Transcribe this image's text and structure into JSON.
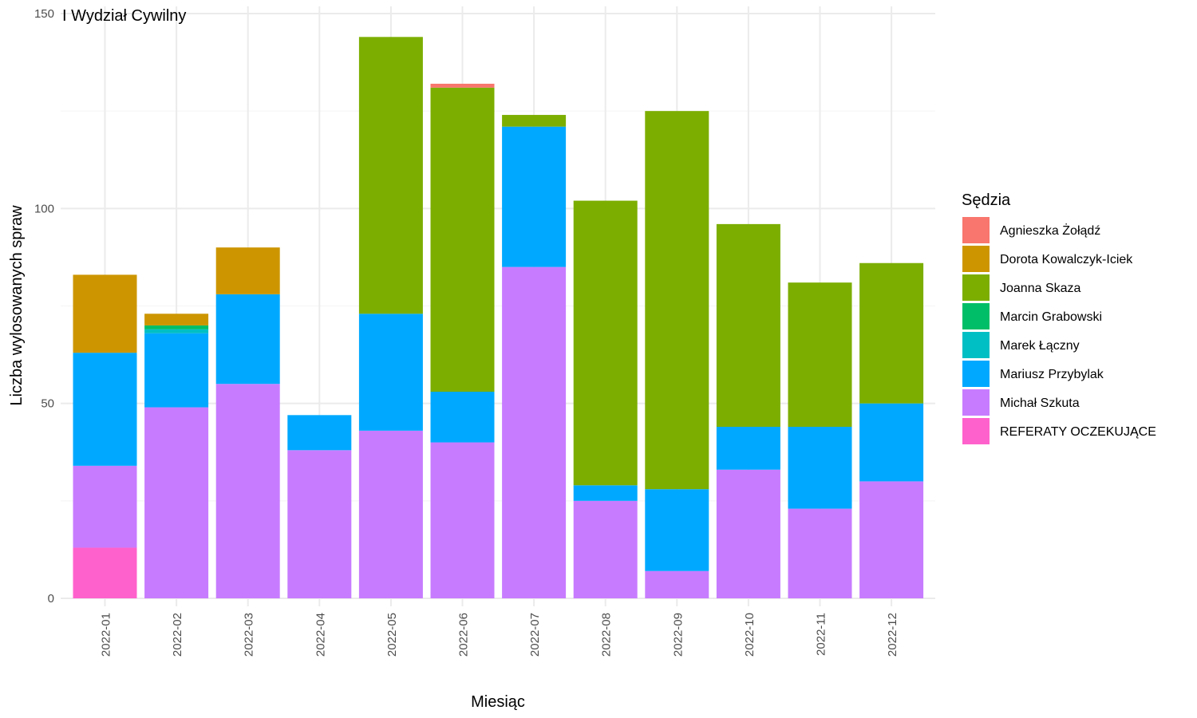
{
  "chart_data": {
    "type": "bar",
    "stacked": true,
    "title": "I Wydział Cywilny",
    "xlabel": "Miesiąc",
    "ylabel": "Liczba wylosowanych spraw",
    "ylim": [
      0,
      150
    ],
    "yticks": [
      0,
      50,
      100,
      150
    ],
    "grid": true,
    "legend_title": "Sędzia",
    "legend_position": "right",
    "categories": [
      "2022-01",
      "2022-02",
      "2022-03",
      "2022-04",
      "2022-05",
      "2022-06",
      "2022-07",
      "2022-08",
      "2022-09",
      "2022-10",
      "2022-11",
      "2022-12"
    ],
    "series": [
      {
        "name": "Agnieszka Żołądź",
        "color": "#F8766D",
        "values": [
          0,
          0,
          0,
          0,
          0,
          1,
          0,
          0,
          0,
          0,
          0,
          0
        ]
      },
      {
        "name": "Dorota Kowalczyk-Iciek",
        "color": "#CD9600",
        "values": [
          20,
          3,
          12,
          0,
          0,
          0,
          0,
          0,
          0,
          0,
          0,
          0
        ]
      },
      {
        "name": "Joanna Skaza",
        "color": "#7CAE00",
        "values": [
          0,
          0,
          0,
          0,
          71,
          78,
          3,
          73,
          97,
          52,
          37,
          36
        ]
      },
      {
        "name": "Marcin Grabowski",
        "color": "#00BE67",
        "values": [
          0,
          1,
          0,
          0,
          0,
          0,
          0,
          0,
          0,
          0,
          0,
          0
        ]
      },
      {
        "name": "Marek Łączny",
        "color": "#00BFC4",
        "values": [
          0,
          1,
          0,
          0,
          0,
          0,
          0,
          0,
          0,
          0,
          0,
          0
        ]
      },
      {
        "name": "Mariusz Przybylak",
        "color": "#00A9FF",
        "values": [
          29,
          19,
          23,
          9,
          30,
          13,
          36,
          4,
          21,
          11,
          21,
          20
        ]
      },
      {
        "name": "Michał Szkuta",
        "color": "#C77CFF",
        "values": [
          21,
          49,
          55,
          38,
          43,
          40,
          85,
          25,
          7,
          33,
          23,
          30
        ]
      },
      {
        "name": "REFERATY OCZEKUJĄCE",
        "color": "#FF61CC",
        "values": [
          13,
          0,
          0,
          0,
          0,
          0,
          0,
          0,
          0,
          0,
          0,
          0
        ]
      }
    ]
  }
}
